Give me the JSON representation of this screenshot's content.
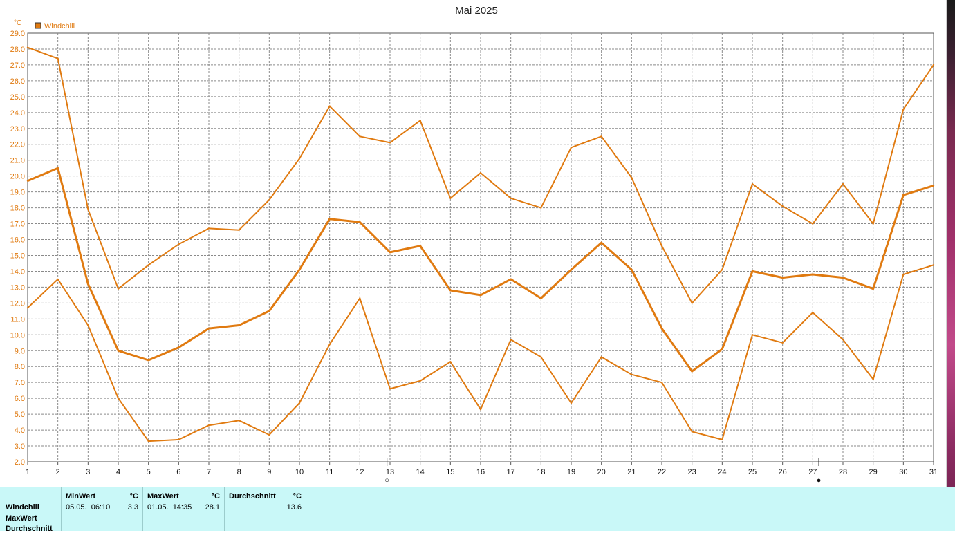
{
  "chart_data": {
    "type": "line",
    "title": "Mai 2025",
    "y_unit": "°C",
    "legend": [
      {
        "label": "Windchill",
        "color": "#e07a10"
      }
    ],
    "ylim": [
      2.0,
      29.0
    ],
    "y_ticks": [
      "2.0",
      "3.0",
      "4.0",
      "5.0",
      "6.0",
      "7.0",
      "8.0",
      "9.0",
      "10.0",
      "11.0",
      "12.0",
      "13.0",
      "14.0",
      "15.0",
      "16.0",
      "17.0",
      "18.0",
      "19.0",
      "20.0",
      "21.0",
      "22.0",
      "23.0",
      "24.0",
      "25.0",
      "26.0",
      "27.0",
      "28.0",
      "29.0"
    ],
    "x": [
      "1",
      "2",
      "3",
      "4",
      "5",
      "6",
      "7",
      "8",
      "9",
      "10",
      "11",
      "12",
      "13",
      "14",
      "15",
      "16",
      "17",
      "18",
      "19",
      "20",
      "21",
      "22",
      "23",
      "24",
      "25",
      "26",
      "27",
      "28",
      "29",
      "30",
      "31"
    ],
    "series": [
      {
        "values": [
          28.1,
          27.4,
          17.9,
          12.9,
          14.4,
          15.7,
          16.7,
          16.6,
          18.5,
          21.1,
          24.4,
          22.5,
          22.1,
          23.5,
          18.6,
          20.2,
          18.6,
          18.0,
          21.8,
          22.5,
          19.9,
          15.6,
          12.0,
          14.1,
          19.5,
          18.1,
          17.0,
          19.5,
          17.0,
          24.2,
          27.0
        ],
        "width": 2
      },
      {
        "values": [
          19.7,
          20.5,
          13.2,
          9.0,
          8.4,
          9.2,
          10.4,
          10.6,
          11.5,
          14.1,
          17.3,
          17.1,
          15.2,
          15.6,
          12.8,
          12.5,
          13.5,
          12.3,
          14.1,
          15.8,
          14.1,
          10.4,
          7.7,
          9.1,
          14.0,
          13.6,
          13.8,
          13.6,
          12.9,
          18.8,
          19.4
        ],
        "width": 3
      },
      {
        "values": [
          11.7,
          13.5,
          10.6,
          6.0,
          3.3,
          3.4,
          4.3,
          4.6,
          3.7,
          5.7,
          9.4,
          12.3,
          6.6,
          7.1,
          8.3,
          5.3,
          9.7,
          8.6,
          5.7,
          8.6,
          7.5,
          7.0,
          3.9,
          3.4,
          10.0,
          9.5,
          11.4,
          9.7,
          7.2,
          13.8,
          14.4
        ],
        "width": 2
      }
    ],
    "moon_markers": [
      {
        "day": 12.9,
        "symbol": "○"
      },
      {
        "day": 27.2,
        "symbol": "●"
      }
    ],
    "grid": true,
    "series_color": "#e07a10"
  },
  "stats": {
    "row_labels": [
      "Windchill",
      "MaxWert",
      "Durchschnitt"
    ],
    "columns": [
      {
        "header": "MinWert",
        "unit": "°C",
        "date": "05.05.  06:10",
        "value": "3.3"
      },
      {
        "header": "MaxWert",
        "unit": "°C",
        "date": "01.05.  14:35",
        "value": "28.1"
      },
      {
        "header": "Durchschnitt",
        "unit": "°C",
        "date": "",
        "value": "13.6"
      }
    ]
  }
}
